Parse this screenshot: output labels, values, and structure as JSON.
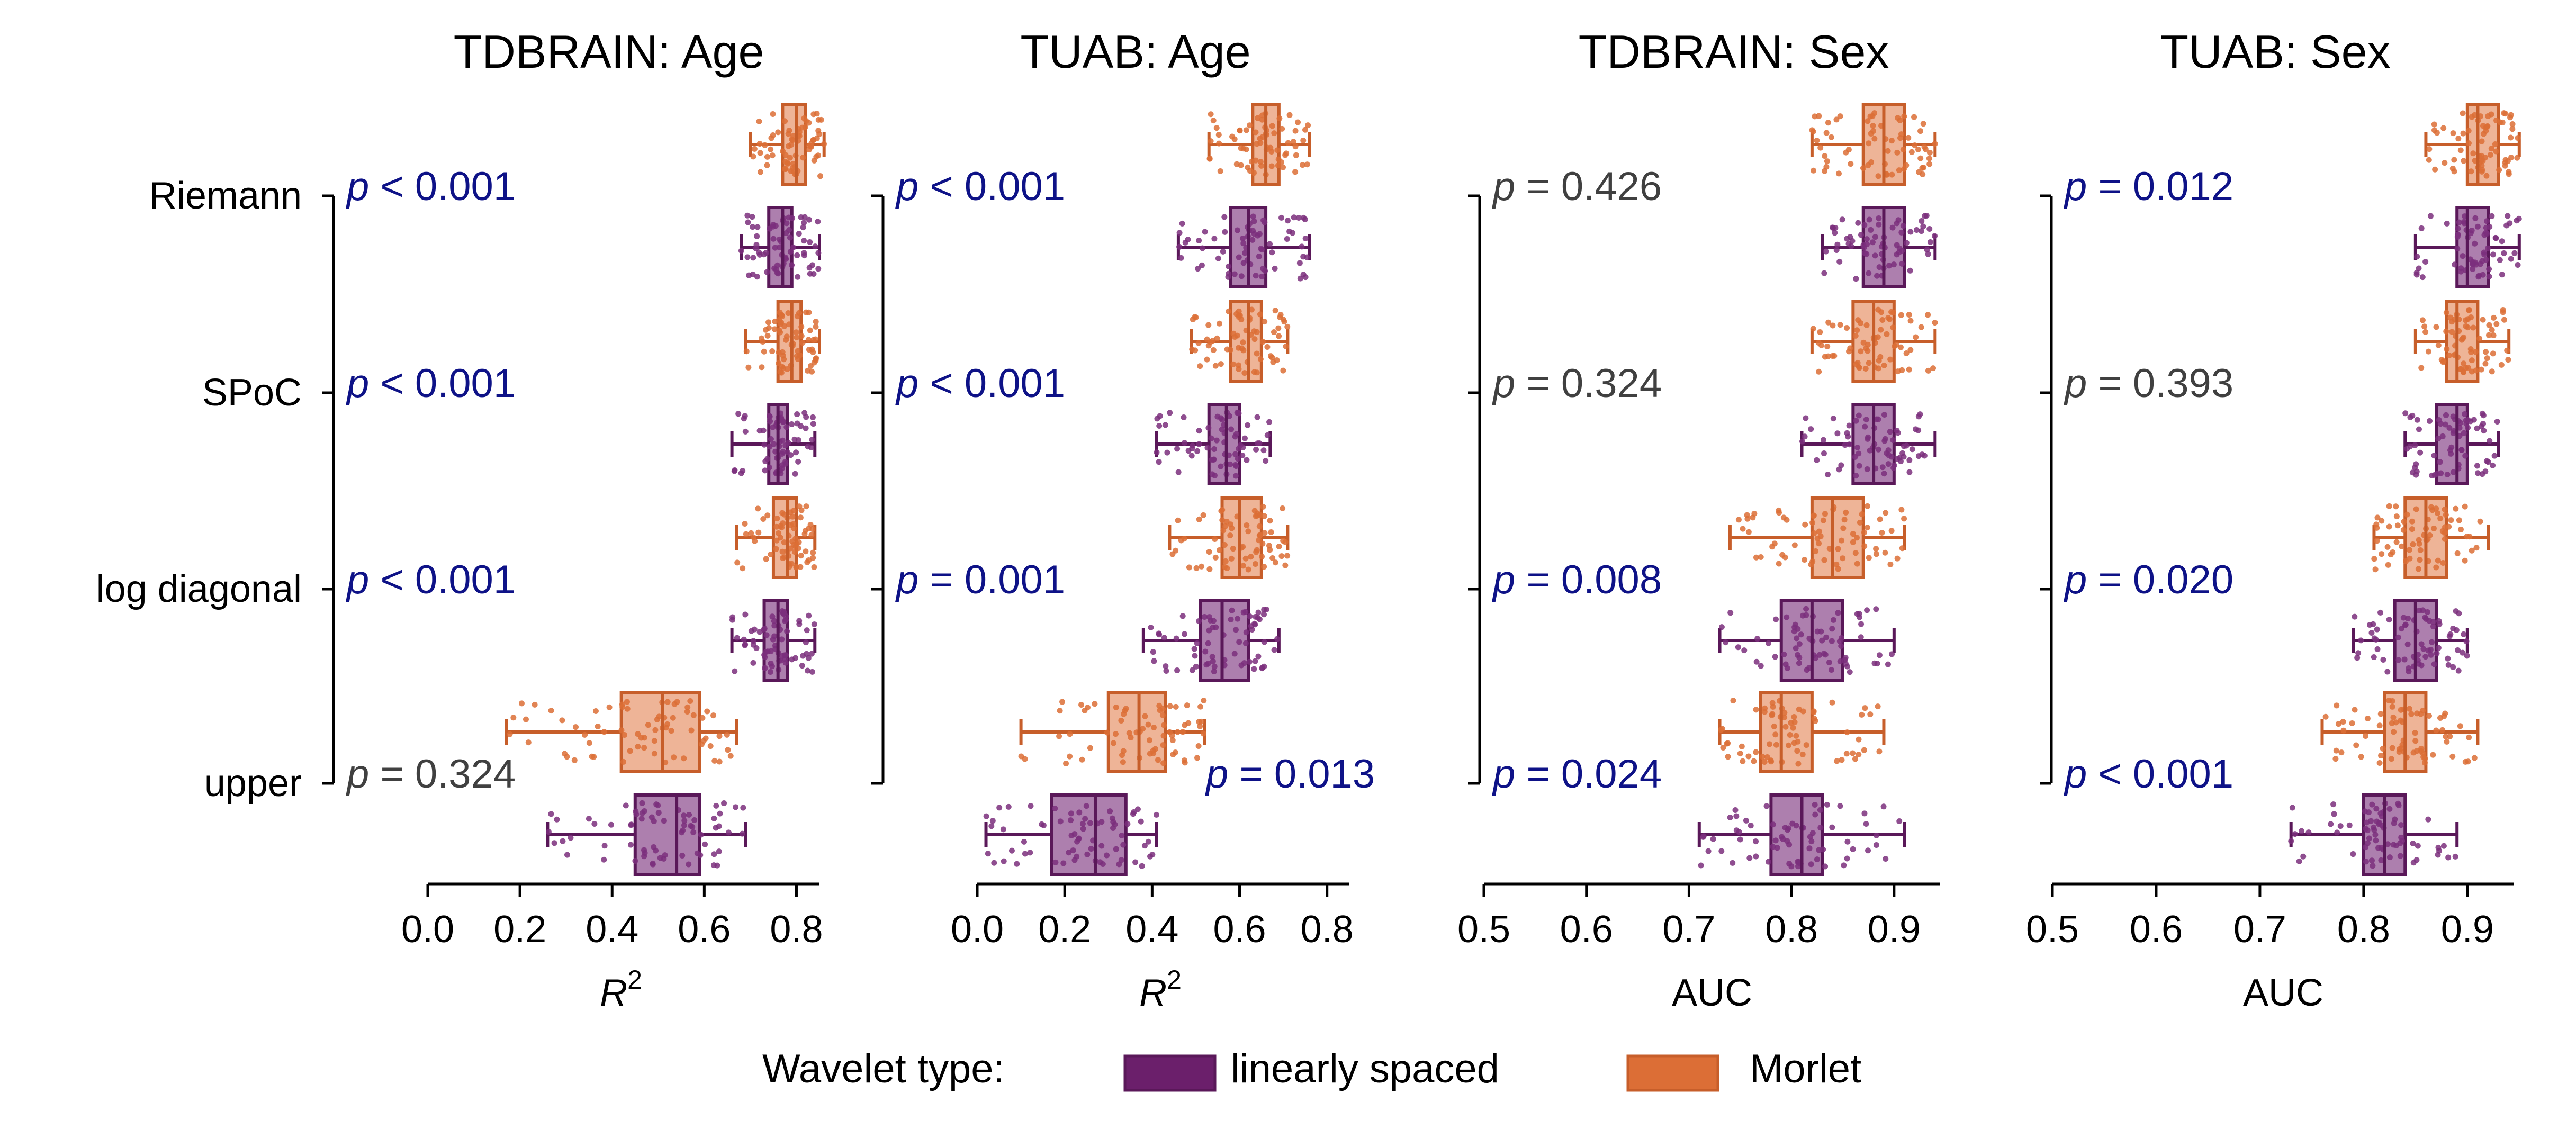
{
  "colors": {
    "linear_fill": "#ad7fae",
    "linear_edge": "#5a1859",
    "linear_point": "#7b2f7c",
    "morlet_fill": "#eeb497",
    "morlet_edge": "#c75e2a",
    "morlet_point": "#dc6e36",
    "sig_pvalue": "#0e1287",
    "nonsig_pvalue": "#404040"
  },
  "legend": {
    "title": "Wavelet type:",
    "items": [
      {
        "label": "linearly spaced",
        "color": "#6b1f6b"
      },
      {
        "label": "Morlet",
        "color": "#dc6e36"
      }
    ]
  },
  "chart_data": [
    {
      "type": "box",
      "title": "TDBRAIN: Age",
      "xlabel": "R²",
      "xlim": [
        0.0,
        0.85
      ],
      "xticks": [
        "0.0",
        "0.2",
        "0.4",
        "0.6",
        "0.8"
      ],
      "categories": [
        "Riemann",
        "SPoC",
        "log diagonal",
        "upper"
      ],
      "series": [
        {
          "name": "Morlet",
          "boxes": [
            {
              "whislo": 0.7,
              "q1": 0.77,
              "med": 0.8,
              "q3": 0.82,
              "whishi": 0.86
            },
            {
              "whislo": 0.69,
              "q1": 0.76,
              "med": 0.79,
              "q3": 0.81,
              "whishi": 0.85
            },
            {
              "whislo": 0.67,
              "q1": 0.75,
              "med": 0.78,
              "q3": 0.8,
              "whishi": 0.84
            },
            {
              "whislo": 0.17,
              "q1": 0.42,
              "med": 0.51,
              "q3": 0.59,
              "whishi": 0.67
            }
          ]
        },
        {
          "name": "linearly spaced",
          "boxes": [
            {
              "whislo": 0.68,
              "q1": 0.74,
              "med": 0.77,
              "q3": 0.79,
              "whishi": 0.85
            },
            {
              "whislo": 0.66,
              "q1": 0.74,
              "med": 0.76,
              "q3": 0.78,
              "whishi": 0.84
            },
            {
              "whislo": 0.66,
              "q1": 0.73,
              "med": 0.76,
              "q3": 0.78,
              "whishi": 0.84
            },
            {
              "whislo": 0.26,
              "q1": 0.45,
              "med": 0.54,
              "q3": 0.59,
              "whishi": 0.69
            }
          ]
        }
      ],
      "pvalues": [
        "p < 0.001",
        "p < 0.001",
        "p < 0.001",
        "p = 0.324"
      ],
      "significant": [
        true,
        true,
        true,
        false
      ]
    },
    {
      "type": "box",
      "title": "TUAB: Age",
      "xlabel": "R²",
      "xlim": [
        0.0,
        0.85
      ],
      "xticks": [
        "0.0",
        "0.2",
        "0.4",
        "0.6",
        "0.8"
      ],
      "categories": [
        "Riemann",
        "SPoC",
        "log diagonal",
        "upper"
      ],
      "series": [
        {
          "name": "Morlet",
          "boxes": [
            {
              "whislo": 0.53,
              "q1": 0.63,
              "med": 0.66,
              "q3": 0.69,
              "whishi": 0.76
            },
            {
              "whislo": 0.49,
              "q1": 0.58,
              "med": 0.62,
              "q3": 0.65,
              "whishi": 0.71
            },
            {
              "whislo": 0.44,
              "q1": 0.56,
              "med": 0.6,
              "q3": 0.65,
              "whishi": 0.71
            },
            {
              "whislo": 0.1,
              "q1": 0.3,
              "med": 0.37,
              "q3": 0.43,
              "whishi": 0.52
            }
          ]
        },
        {
          "name": "linearly spaced",
          "boxes": [
            {
              "whislo": 0.46,
              "q1": 0.58,
              "med": 0.62,
              "q3": 0.66,
              "whishi": 0.76
            },
            {
              "whislo": 0.41,
              "q1": 0.53,
              "med": 0.57,
              "q3": 0.6,
              "whishi": 0.67
            },
            {
              "whislo": 0.38,
              "q1": 0.51,
              "med": 0.56,
              "q3": 0.62,
              "whishi": 0.69
            },
            {
              "whislo": 0.02,
              "q1": 0.17,
              "med": 0.27,
              "q3": 0.34,
              "whishi": 0.41
            }
          ]
        }
      ],
      "pvalues": [
        "p < 0.001",
        "p < 0.001",
        "p = 0.001",
        "p = 0.013"
      ],
      "significant": [
        true,
        true,
        true,
        true
      ]
    },
    {
      "type": "box",
      "title": "TDBRAIN: Sex",
      "xlabel": "AUC",
      "xlim": [
        0.5,
        0.945
      ],
      "xticks": [
        "0.5",
        "0.6",
        "0.7",
        "0.8",
        "0.9"
      ],
      "categories": [
        "Riemann",
        "SPoC",
        "log diagonal",
        "upper"
      ],
      "series": [
        {
          "name": "Morlet",
          "boxes": [
            {
              "whislo": 0.82,
              "q1": 0.87,
              "med": 0.89,
              "q3": 0.91,
              "whishi": 0.94
            },
            {
              "whislo": 0.82,
              "q1": 0.86,
              "med": 0.88,
              "q3": 0.9,
              "whishi": 0.94
            },
            {
              "whislo": 0.74,
              "q1": 0.82,
              "med": 0.84,
              "q3": 0.87,
              "whishi": 0.91
            },
            {
              "whislo": 0.73,
              "q1": 0.77,
              "med": 0.79,
              "q3": 0.82,
              "whishi": 0.89
            }
          ]
        },
        {
          "name": "linearly spaced",
          "boxes": [
            {
              "whislo": 0.83,
              "q1": 0.87,
              "med": 0.89,
              "q3": 0.91,
              "whishi": 0.94
            },
            {
              "whislo": 0.81,
              "q1": 0.86,
              "med": 0.88,
              "q3": 0.9,
              "whishi": 0.94
            },
            {
              "whislo": 0.73,
              "q1": 0.79,
              "med": 0.82,
              "q3": 0.85,
              "whishi": 0.9
            },
            {
              "whislo": 0.71,
              "q1": 0.78,
              "med": 0.81,
              "q3": 0.83,
              "whishi": 0.91
            }
          ]
        }
      ],
      "pvalues": [
        "p = 0.426",
        "p = 0.324",
        "p = 0.008",
        "p = 0.024"
      ],
      "significant": [
        false,
        false,
        true,
        true
      ]
    },
    {
      "type": "box",
      "title": "TUAB: Sex",
      "xlabel": "AUC",
      "xlim": [
        0.5,
        0.945
      ],
      "xticks": [
        "0.5",
        "0.6",
        "0.7",
        "0.8",
        "0.9"
      ],
      "categories": [
        "Riemann",
        "SPoC",
        "log diagonal",
        "upper"
      ],
      "series": [
        {
          "name": "Morlet",
          "boxes": [
            {
              "whislo": 0.86,
              "q1": 0.9,
              "med": 0.91,
              "q3": 0.93,
              "whishi": 0.95
            },
            {
              "whislo": 0.85,
              "q1": 0.88,
              "med": 0.89,
              "q3": 0.91,
              "whishi": 0.94
            },
            {
              "whislo": 0.81,
              "q1": 0.84,
              "med": 0.86,
              "q3": 0.88,
              "whishi": 0.92
            },
            {
              "whislo": 0.76,
              "q1": 0.82,
              "med": 0.84,
              "q3": 0.86,
              "whishi": 0.91
            }
          ]
        },
        {
          "name": "linearly spaced",
          "boxes": [
            {
              "whislo": 0.85,
              "q1": 0.89,
              "med": 0.9,
              "q3": 0.92,
              "whishi": 0.95
            },
            {
              "whislo": 0.84,
              "q1": 0.87,
              "med": 0.89,
              "q3": 0.9,
              "whishi": 0.93
            },
            {
              "whislo": 0.79,
              "q1": 0.83,
              "med": 0.85,
              "q3": 0.87,
              "whishi": 0.9
            },
            {
              "whislo": 0.73,
              "q1": 0.8,
              "med": 0.82,
              "q3": 0.84,
              "whishi": 0.89
            }
          ]
        }
      ],
      "pvalues": [
        "p = 0.012",
        "p = 0.393",
        "p = 0.020",
        "p < 0.001"
      ],
      "significant": [
        true,
        false,
        true,
        true
      ]
    }
  ]
}
